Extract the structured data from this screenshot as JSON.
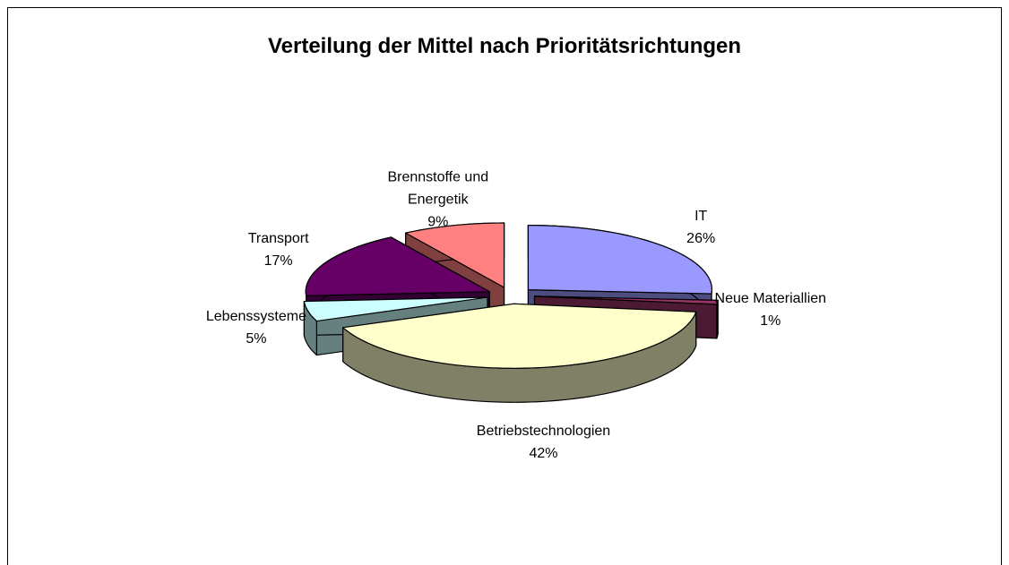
{
  "chart_data": {
    "type": "pie",
    "title": "Verteilung der Mittel nach Prioritätsrichtungen",
    "categories": [
      "IT",
      "Neue Materiallien",
      "Betriebstechnologien",
      "Lebenssysteme",
      "Transport",
      "Brennstoffe und Energetik"
    ],
    "values": [
      26,
      1,
      42,
      5,
      17,
      9
    ],
    "value_labels": [
      "26%",
      "1%",
      "42%",
      "5%",
      "17%",
      "9%"
    ],
    "colors": [
      "#9999ff",
      "#993366",
      "#ffffcc",
      "#ccffff",
      "#660066",
      "#ff8080"
    ]
  }
}
